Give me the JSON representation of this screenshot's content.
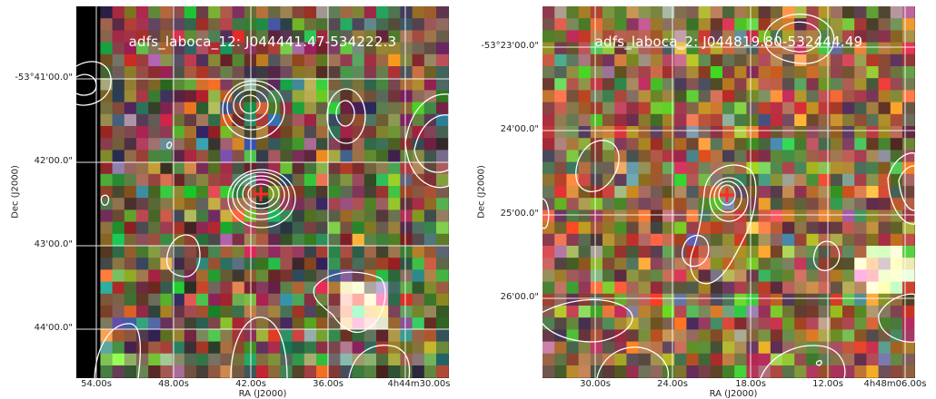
{
  "panels": [
    {
      "title": "adfs_laboca_12: J044441.47-534222.3",
      "xlabel": "RA (J2000)",
      "ylabel": "Dec (J2000)",
      "yticks": [
        "-53°41'00.0\"",
        "42'00.0\"",
        "43'00.0\"",
        "44'00.0\""
      ],
      "xticks": [
        "54.00s",
        "48.00s",
        "42.00s",
        "36.00s",
        "4h44m30.00s"
      ],
      "marker_color": "#ff2a2a",
      "contour_color": "#ffffff",
      "grid_color": "#ffffff"
    },
    {
      "title": "adfs_laboca_2: J044819.80-532444.49",
      "xlabel": "RA (J2000)",
      "ylabel": "Dec (J2000)",
      "yticks": [
        "-53°23'00.0\"",
        "24'00.0\"",
        "25'00.0\"",
        "26'00.0\""
      ],
      "xticks": [
        "30.00s",
        "24.00s",
        "18.00s",
        "12.00s",
        "4h48m06.00s"
      ],
      "marker_color": "#ff2a2a",
      "contour_color": "#ffffff",
      "grid_color": "#ffffff"
    }
  ]
}
